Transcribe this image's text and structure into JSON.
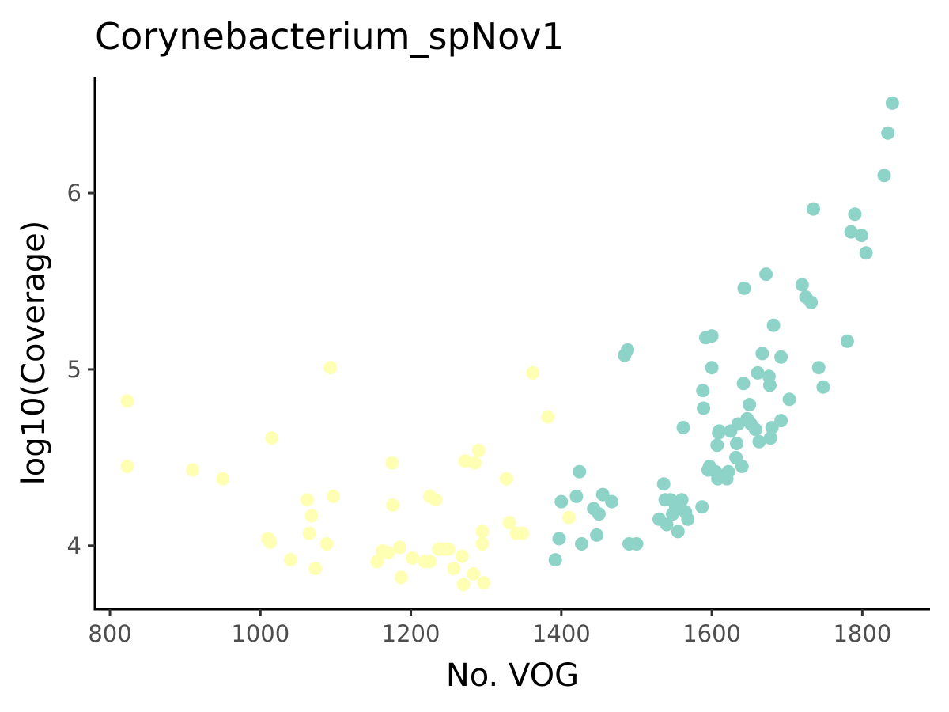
{
  "chart_data": {
    "type": "scatter",
    "title": "Corynebacterium_spNov1",
    "xlabel": "No. VOG",
    "ylabel": "log10(Coverage)",
    "xlim": [
      780,
      1890
    ],
    "ylim": [
      3.64,
      6.66
    ],
    "xticks": [
      800,
      1000,
      1200,
      1400,
      1600,
      1800
    ],
    "xtick_labels": [
      "800",
      "1000",
      "1200",
      "1400",
      "1600",
      "1800"
    ],
    "yticks": [
      4,
      5,
      6
    ],
    "ytick_labels": [
      "4",
      "5",
      "6"
    ],
    "grid": false,
    "legend": "none",
    "series": [
      {
        "color": "#ffffb3",
        "points": [
          [
            823,
            4.82
          ],
          [
            823,
            4.45
          ],
          [
            910,
            4.43
          ],
          [
            950,
            4.38
          ],
          [
            1010,
            4.04
          ],
          [
            1013,
            4.02
          ],
          [
            1015,
            4.61
          ],
          [
            1040,
            3.92
          ],
          [
            1062,
            4.26
          ],
          [
            1065,
            4.07
          ],
          [
            1068,
            4.17
          ],
          [
            1073,
            3.87
          ],
          [
            1088,
            4.01
          ],
          [
            1093,
            5.01
          ],
          [
            1097,
            4.28
          ],
          [
            1155,
            3.91
          ],
          [
            1162,
            3.97
          ],
          [
            1170,
            3.96
          ],
          [
            1175,
            4.47
          ],
          [
            1176,
            4.23
          ],
          [
            1185,
            3.99
          ],
          [
            1187,
            3.82
          ],
          [
            1202,
            3.93
          ],
          [
            1218,
            3.91
          ],
          [
            1225,
            4.28
          ],
          [
            1225,
            3.91
          ],
          [
            1233,
            4.26
          ],
          [
            1237,
            3.98
          ],
          [
            1243,
            3.98
          ],
          [
            1250,
            3.98
          ],
          [
            1257,
            3.87
          ],
          [
            1268,
            3.94
          ],
          [
            1270,
            3.78
          ],
          [
            1272,
            4.48
          ],
          [
            1283,
            3.84
          ],
          [
            1285,
            4.47
          ],
          [
            1290,
            4.54
          ],
          [
            1295,
            4.08
          ],
          [
            1295,
            4.01
          ],
          [
            1297,
            3.79
          ],
          [
            1327,
            4.38
          ],
          [
            1331,
            4.13
          ],
          [
            1340,
            4.07
          ],
          [
            1348,
            4.07
          ],
          [
            1362,
            4.98
          ],
          [
            1382,
            4.73
          ],
          [
            1410,
            4.16
          ]
        ]
      },
      {
        "color": "#8dd3c7",
        "points": [
          [
            1392,
            3.92
          ],
          [
            1397,
            4.04
          ],
          [
            1400,
            4.25
          ],
          [
            1420,
            4.28
          ],
          [
            1424,
            4.42
          ],
          [
            1427,
            4.01
          ],
          [
            1443,
            4.21
          ],
          [
            1447,
            4.06
          ],
          [
            1450,
            4.18
          ],
          [
            1455,
            4.29
          ],
          [
            1467,
            4.25
          ],
          [
            1484,
            5.08
          ],
          [
            1488,
            5.11
          ],
          [
            1490,
            4.01
          ],
          [
            1500,
            4.01
          ],
          [
            1530,
            4.15
          ],
          [
            1536,
            4.35
          ],
          [
            1538,
            4.26
          ],
          [
            1540,
            4.12
          ],
          [
            1545,
            4.26
          ],
          [
            1548,
            4.18
          ],
          [
            1552,
            4.22
          ],
          [
            1555,
            4.08
          ],
          [
            1558,
            4.22
          ],
          [
            1560,
            4.26
          ],
          [
            1562,
            4.67
          ],
          [
            1565,
            4.19
          ],
          [
            1568,
            4.15
          ],
          [
            1587,
            4.22
          ],
          [
            1588,
            4.88
          ],
          [
            1589,
            4.78
          ],
          [
            1592,
            5.18
          ],
          [
            1595,
            4.43
          ],
          [
            1597,
            4.45
          ],
          [
            1600,
            5.19
          ],
          [
            1600,
            5.01
          ],
          [
            1605,
            4.42
          ],
          [
            1607,
            4.57
          ],
          [
            1608,
            4.38
          ],
          [
            1609,
            4.64
          ],
          [
            1610,
            4.65
          ],
          [
            1620,
            4.38
          ],
          [
            1622,
            4.42
          ],
          [
            1625,
            4.65
          ],
          [
            1632,
            4.5
          ],
          [
            1633,
            4.58
          ],
          [
            1635,
            4.69
          ],
          [
            1640,
            4.45
          ],
          [
            1642,
            4.92
          ],
          [
            1643,
            5.46
          ],
          [
            1647,
            4.72
          ],
          [
            1650,
            4.8
          ],
          [
            1652,
            4.69
          ],
          [
            1658,
            4.66
          ],
          [
            1661,
            4.98
          ],
          [
            1663,
            4.59
          ],
          [
            1667,
            5.09
          ],
          [
            1672,
            5.54
          ],
          [
            1676,
            4.96
          ],
          [
            1677,
            4.91
          ],
          [
            1678,
            4.61
          ],
          [
            1680,
            4.67
          ],
          [
            1682,
            5.25
          ],
          [
            1692,
            5.07
          ],
          [
            1692,
            4.71
          ],
          [
            1703,
            4.83
          ],
          [
            1720,
            5.48
          ],
          [
            1725,
            5.41
          ],
          [
            1732,
            5.38
          ],
          [
            1735,
            5.91
          ],
          [
            1742,
            5.01
          ],
          [
            1748,
            4.9
          ],
          [
            1780,
            5.16
          ],
          [
            1785,
            5.78
          ],
          [
            1790,
            5.88
          ],
          [
            1799,
            5.76
          ],
          [
            1805,
            5.66
          ],
          [
            1829,
            6.1
          ],
          [
            1834,
            6.34
          ],
          [
            1840,
            6.51
          ]
        ]
      }
    ]
  }
}
